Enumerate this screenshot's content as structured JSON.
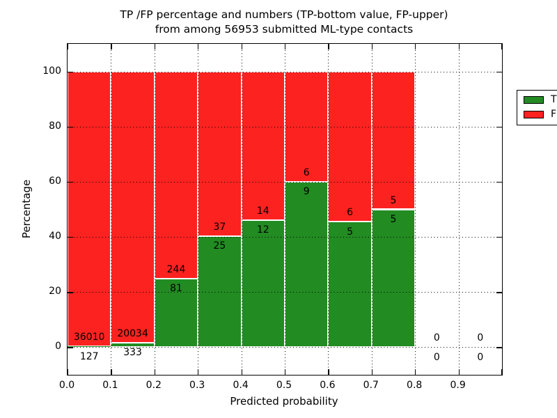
{
  "chart_data": {
    "type": "bar",
    "stacked": true,
    "title_lines": [
      "TP /FP percentage and numbers (TP-bottom value, FP-upper)",
      "from among 56953 submitted ML-type contacts"
    ],
    "xlabel": "Predicted probability",
    "ylabel": "Percentage",
    "xlim": [
      0.0,
      1.0
    ],
    "ylim": [
      -10,
      110
    ],
    "xtick_labels": [
      "0.0",
      "0.1",
      "0.2",
      "0.3",
      "0.4",
      "0.5",
      "0.6",
      "0.7",
      "0.8",
      "0.9"
    ],
    "ytick_values": [
      0,
      20,
      40,
      60,
      80,
      100
    ],
    "grid": true,
    "grid_style": "dotted",
    "bar_unit": "percent of bin total (TP% bottom, FP% top, stacked to 100)",
    "total_contacts": 56953,
    "legend_position": "upper right",
    "legend": [
      {
        "label": "TP",
        "color": "#228b22"
      },
      {
        "label": "FP",
        "color": "#fb2220"
      }
    ],
    "colors": {
      "tp": "#228b22",
      "fp": "#fb2220",
      "bar_edge": "#ffffff",
      "text": "#000000"
    },
    "bins": [
      {
        "range": [
          0.0,
          0.1
        ],
        "tp": 127,
        "fp": 36010
      },
      {
        "range": [
          0.1,
          0.2
        ],
        "tp": 333,
        "fp": 20034
      },
      {
        "range": [
          0.2,
          0.3
        ],
        "tp": 81,
        "fp": 244
      },
      {
        "range": [
          0.3,
          0.4
        ],
        "tp": 25,
        "fp": 37
      },
      {
        "range": [
          0.4,
          0.5
        ],
        "tp": 12,
        "fp": 14
      },
      {
        "range": [
          0.5,
          0.6
        ],
        "tp": 9,
        "fp": 6
      },
      {
        "range": [
          0.6,
          0.7
        ],
        "tp": 5,
        "fp": 6
      },
      {
        "range": [
          0.7,
          0.8
        ],
        "tp": 5,
        "fp": 5
      },
      {
        "range": [
          0.8,
          0.9
        ],
        "tp": 0,
        "fp": 0
      },
      {
        "range": [
          0.9,
          1.0
        ],
        "tp": 0,
        "fp": 0
      }
    ]
  }
}
